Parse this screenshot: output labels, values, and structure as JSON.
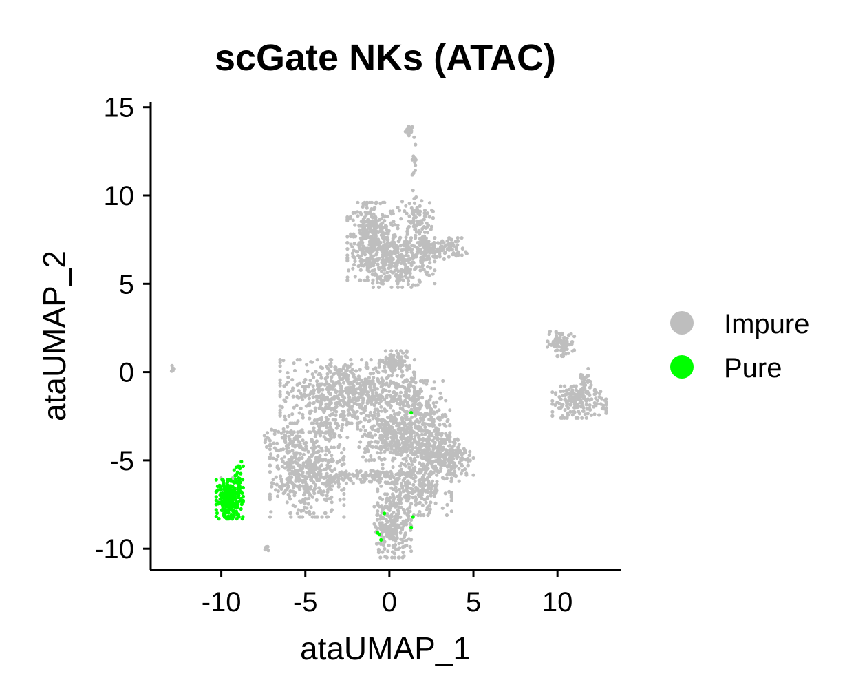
{
  "chart_data": {
    "type": "scatter",
    "title": "scGate NKs (ATAC)",
    "xlabel": "ataUMAP_1",
    "ylabel": "ataUMAP_2",
    "xlim": [
      -14.2,
      13.8
    ],
    "ylim": [
      -11.2,
      15.3
    ],
    "x_ticks": [
      -10,
      -5,
      0,
      5,
      10
    ],
    "y_ticks": [
      -10,
      -5,
      0,
      5,
      10,
      15
    ],
    "x_tick_labels": [
      "-10",
      "-5",
      "0",
      "5",
      "10"
    ],
    "y_tick_labels": [
      "-10",
      "-5",
      "0",
      "5",
      "10",
      "15"
    ],
    "grid": false,
    "legend": {
      "placement": "right"
    },
    "series": [
      {
        "name": "Impure",
        "color": "#bebebe",
        "clusters": [
          {
            "cx": 1.2,
            "cy": 13.7,
            "sx": 0.12,
            "sy": 0.15,
            "n": 20
          },
          {
            "cx": 1.5,
            "cy": 11.5,
            "sx": 0.08,
            "sy": 0.9,
            "n": 14
          },
          {
            "cx": -1.0,
            "cy": 7.4,
            "sx": 0.75,
            "sy": 1.1,
            "n": 420
          },
          {
            "cx": 0.7,
            "cy": 6.2,
            "sx": 1.0,
            "sy": 0.7,
            "n": 260
          },
          {
            "cx": 1.6,
            "cy": 8.5,
            "sx": 0.5,
            "sy": 0.6,
            "n": 90
          },
          {
            "cx": 2.8,
            "cy": 7.0,
            "sx": 0.9,
            "sy": 0.3,
            "n": 150
          },
          {
            "cx": 10.2,
            "cy": 1.6,
            "sx": 0.4,
            "sy": 0.35,
            "n": 90
          },
          {
            "cx": 11.3,
            "cy": -1.7,
            "sx": 0.8,
            "sy": 0.45,
            "n": 170
          },
          {
            "cx": 11.6,
            "cy": -0.6,
            "sx": 0.2,
            "sy": 0.4,
            "n": 30
          },
          {
            "cx": 0.3,
            "cy": 0.5,
            "sx": 0.45,
            "sy": 0.35,
            "n": 90
          },
          {
            "cx": -2.5,
            "cy": -1.1,
            "sx": 2.0,
            "sy": 0.9,
            "n": 650
          },
          {
            "cx": 1.6,
            "cy": -3.1,
            "sx": 1.0,
            "sy": 1.3,
            "n": 500
          },
          {
            "cx": -0.3,
            "cy": -3.6,
            "sx": 0.8,
            "sy": 0.7,
            "n": 200
          },
          {
            "cx": 3.4,
            "cy": -5.0,
            "sx": 0.8,
            "sy": 0.6,
            "n": 220
          },
          {
            "cx": 1.5,
            "cy": -6.5,
            "sx": 1.1,
            "sy": 0.8,
            "n": 260
          },
          {
            "cx": -4.9,
            "cy": -5.8,
            "sx": 1.1,
            "sy": 1.2,
            "n": 480
          },
          {
            "cx": -3.5,
            "cy": -3.0,
            "sx": 0.5,
            "sy": 0.5,
            "n": 60
          },
          {
            "cx": 0.2,
            "cy": -8.7,
            "sx": 0.55,
            "sy": 0.9,
            "n": 230
          },
          {
            "cx": -1.5,
            "cy": -5.9,
            "sx": 1.4,
            "sy": 0.2,
            "n": 120
          },
          {
            "cx": -6.3,
            "cy": -3.7,
            "sx": 0.9,
            "sy": 0.4,
            "n": 50
          },
          {
            "cx": -9.5,
            "cy": -7.1,
            "sx": 0.35,
            "sy": 0.55,
            "n": 30
          },
          {
            "cx": -12.9,
            "cy": 0.2,
            "sx": 0.05,
            "sy": 0.08,
            "n": 6
          },
          {
            "cx": -7.3,
            "cy": -10.0,
            "sx": 0.05,
            "sy": 0.08,
            "n": 6
          }
        ]
      },
      {
        "name": "Pure",
        "color": "#00ff00",
        "clusters": [
          {
            "cx": -9.5,
            "cy": -7.2,
            "sx": 0.4,
            "sy": 0.55,
            "n": 260
          },
          {
            "cx": -9.0,
            "cy": -5.6,
            "sx": 0.15,
            "sy": 0.3,
            "n": 18
          }
        ],
        "points": [
          [
            -0.3,
            -8.0
          ],
          [
            1.4,
            -8.2
          ],
          [
            -0.7,
            -9.1
          ],
          [
            -0.5,
            -9.5
          ],
          [
            1.3,
            -8.8
          ],
          [
            1.3,
            -2.3
          ],
          [
            -0.6,
            -9.2
          ]
        ]
      }
    ]
  }
}
